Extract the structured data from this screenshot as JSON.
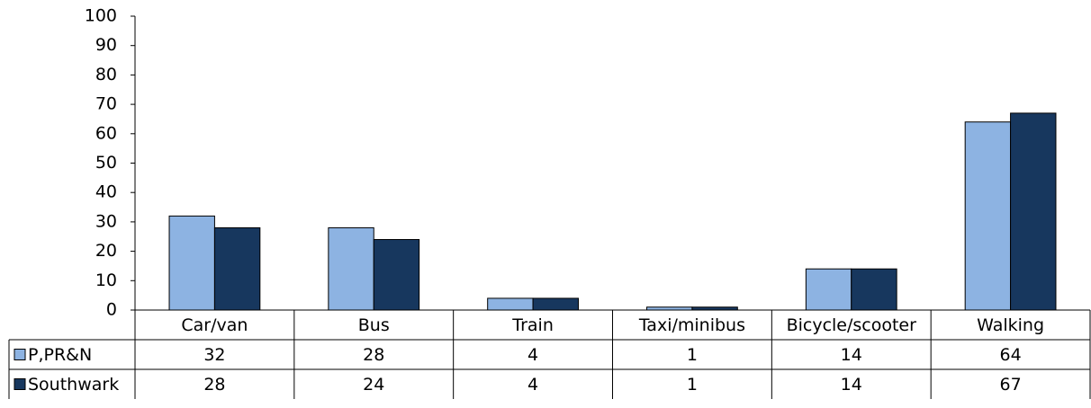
{
  "chart_data": {
    "type": "bar",
    "categories": [
      "Car/van",
      "Bus",
      "Train",
      "Taxi/minibus",
      "Bicycle/scooter",
      "Walking"
    ],
    "series": [
      {
        "name": "P,PR&N",
        "color": "#8db3e2",
        "values": [
          32,
          28,
          4,
          1,
          14,
          64
        ]
      },
      {
        "name": "Southwark",
        "color": "#17375e",
        "values": [
          28,
          24,
          4,
          1,
          14,
          67
        ]
      }
    ],
    "ylim": [
      0,
      100
    ],
    "yticks": [
      0,
      10,
      20,
      30,
      40,
      50,
      60,
      70,
      80,
      90,
      100
    ],
    "data_table": true
  }
}
